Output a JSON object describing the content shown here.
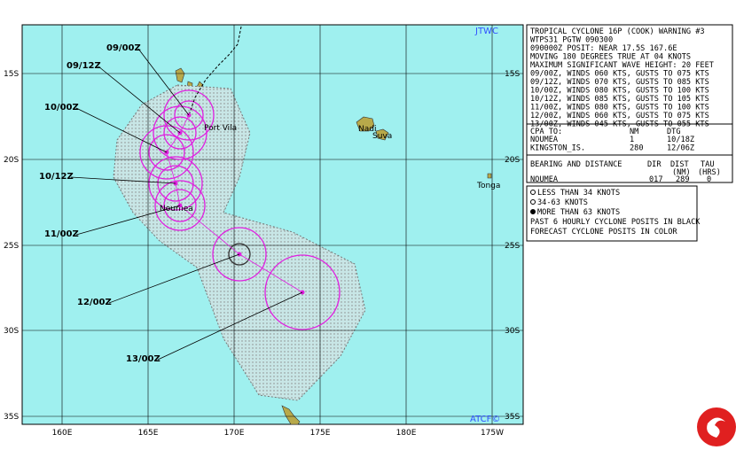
{
  "map": {
    "source": "JTWC",
    "footer": "ATCF©",
    "lon_labels": [
      "160E",
      "165E",
      "170E",
      "175E",
      "180E",
      "175W"
    ],
    "lat_labels": [
      "15S",
      "20S",
      "25S",
      "30S",
      "35S"
    ],
    "places": [
      "Port Vila",
      "Nadi",
      "Suva",
      "Tonga",
      "Noumea"
    ],
    "forecast_times": [
      "09/00Z",
      "09/12Z",
      "10/00Z",
      "10/12Z",
      "11/00Z",
      "12/00Z",
      "13/00Z"
    ]
  },
  "warning": {
    "lines": [
      "TROPICAL CYCLONE 16P (COOK) WARNING #3",
      "WTPS31 PGTW 090300",
      "090000Z POSIT: NEAR 17.5S 167.6E",
      "MOVING 180 DEGREES TRUE AT 04 KNOTS",
      "MAXIMUM SIGNIFICANT WAVE HEIGHT: 20 FEET",
      "09/00Z, WINDS 060 KTS, GUSTS TO 075 KTS",
      "09/12Z, WINDS 070 KTS, GUSTS TO 085 KTS",
      "10/00Z, WINDS 080 KTS, GUSTS TO 100 KTS",
      "10/12Z, WINDS 085 KTS, GUSTS TO 105 KTS",
      "11/00Z, WINDS 080 KTS, GUSTS TO 100 KTS",
      "12/00Z, WINDS 060 KTS, GUSTS TO 075 KTS",
      "13/00Z, WINDS 045 KTS, GUSTS TO 055 KTS"
    ],
    "cpa_header": [
      "CPA TO:",
      "NM",
      "DTG"
    ],
    "cpa_rows": [
      [
        "NOUMEA",
        "1",
        "10/18Z"
      ],
      [
        "KINGSTON_IS.",
        "280",
        "12/06Z"
      ]
    ],
    "bearing_header": [
      "BEARING AND DISTANCE",
      "DIR",
      "DIST",
      "TAU"
    ],
    "bearing_subheader": [
      "(NM)",
      "(HRS)"
    ],
    "bearing_rows": [
      [
        "NOUMEA",
        "017",
        "289",
        "0"
      ]
    ]
  },
  "legend": {
    "lines": [
      "LESS THAN 34 KNOTS",
      "34-63 KNOTS",
      "MORE THAN 63 KNOTS",
      "PAST 6 HOURLY CYCLONE POSITS IN BLACK",
      "FORECAST CYCLONE POSITS IN COLOR"
    ]
  }
}
